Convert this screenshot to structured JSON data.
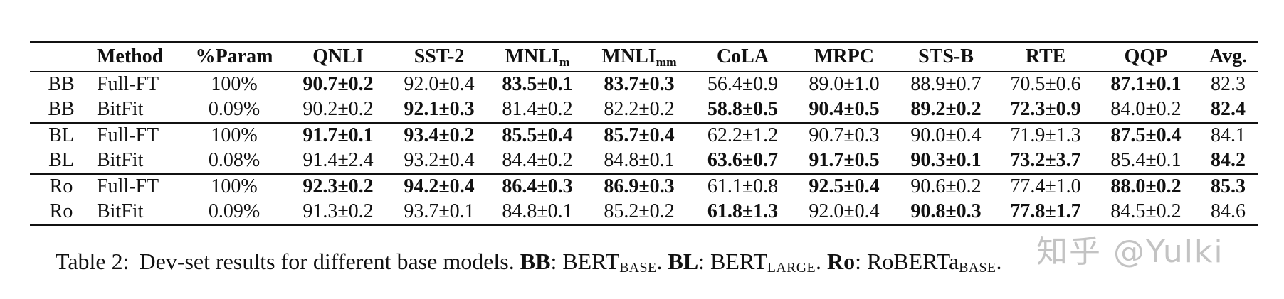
{
  "table": {
    "columns": [
      {
        "label": ""
      },
      {
        "label": "Method"
      },
      {
        "label": "%Param"
      },
      {
        "label": "QNLI"
      },
      {
        "label": "SST-2"
      },
      {
        "label": "MNLI",
        "sub": "m"
      },
      {
        "label": "MNLI",
        "sub": "mm"
      },
      {
        "label": "CoLA"
      },
      {
        "label": "MRPC"
      },
      {
        "label": "STS-B"
      },
      {
        "label": "RTE"
      },
      {
        "label": "QQP"
      },
      {
        "label": "Avg."
      }
    ],
    "rows": [
      {
        "model": "BB",
        "method": "Full-FT",
        "param": "100%",
        "group_start": false,
        "scores": [
          {
            "v": "90.7±0.2",
            "b": true
          },
          {
            "v": "92.0±0.4",
            "b": false
          },
          {
            "v": "83.5±0.1",
            "b": true
          },
          {
            "v": "83.7±0.3",
            "b": true
          },
          {
            "v": "56.4±0.9",
            "b": false
          },
          {
            "v": "89.0±1.0",
            "b": false
          },
          {
            "v": "88.9±0.7",
            "b": false
          },
          {
            "v": "70.5±0.6",
            "b": false
          },
          {
            "v": "87.1±0.1",
            "b": true
          },
          {
            "v": "82.3",
            "b": false
          }
        ]
      },
      {
        "model": "BB",
        "method": "BitFit",
        "param": "0.09%",
        "group_start": false,
        "scores": [
          {
            "v": "90.2±0.2",
            "b": false
          },
          {
            "v": "92.1±0.3",
            "b": true
          },
          {
            "v": "81.4±0.2",
            "b": false
          },
          {
            "v": "82.2±0.2",
            "b": false
          },
          {
            "v": "58.8±0.5",
            "b": true
          },
          {
            "v": "90.4±0.5",
            "b": true
          },
          {
            "v": "89.2±0.2",
            "b": true
          },
          {
            "v": "72.3±0.9",
            "b": true
          },
          {
            "v": "84.0±0.2",
            "b": false
          },
          {
            "v": "82.4",
            "b": true
          }
        ]
      },
      {
        "model": "BL",
        "method": "Full-FT",
        "param": "100%",
        "group_start": true,
        "scores": [
          {
            "v": "91.7±0.1",
            "b": true
          },
          {
            "v": "93.4±0.2",
            "b": true
          },
          {
            "v": "85.5±0.4",
            "b": true
          },
          {
            "v": "85.7±0.4",
            "b": true
          },
          {
            "v": "62.2±1.2",
            "b": false
          },
          {
            "v": "90.7±0.3",
            "b": false
          },
          {
            "v": "90.0±0.4",
            "b": false
          },
          {
            "v": "71.9±1.3",
            "b": false
          },
          {
            "v": "87.5±0.4",
            "b": true
          },
          {
            "v": "84.1",
            "b": false
          }
        ]
      },
      {
        "model": "BL",
        "method": "BitFit",
        "param": "0.08%",
        "group_start": false,
        "scores": [
          {
            "v": "91.4±2.4",
            "b": false
          },
          {
            "v": "93.2±0.4",
            "b": false
          },
          {
            "v": "84.4±0.2",
            "b": false
          },
          {
            "v": "84.8±0.1",
            "b": false
          },
          {
            "v": "63.6±0.7",
            "b": true
          },
          {
            "v": "91.7±0.5",
            "b": true
          },
          {
            "v": "90.3±0.1",
            "b": true
          },
          {
            "v": "73.2±3.7",
            "b": true
          },
          {
            "v": "85.4±0.1",
            "b": false
          },
          {
            "v": "84.2",
            "b": true
          }
        ]
      },
      {
        "model": "Ro",
        "method": "Full-FT",
        "param": "100%",
        "group_start": true,
        "scores": [
          {
            "v": "92.3±0.2",
            "b": true
          },
          {
            "v": "94.2±0.4",
            "b": true
          },
          {
            "v": "86.4±0.3",
            "b": true
          },
          {
            "v": "86.9±0.3",
            "b": true
          },
          {
            "v": "61.1±0.8",
            "b": false
          },
          {
            "v": "92.5±0.4",
            "b": true
          },
          {
            "v": "90.6±0.2",
            "b": false
          },
          {
            "v": "77.4±1.0",
            "b": false
          },
          {
            "v": "88.0±0.2",
            "b": true
          },
          {
            "v": "85.3",
            "b": true
          }
        ]
      },
      {
        "model": "Ro",
        "method": "BitFit",
        "param": "0.09%",
        "group_start": false,
        "scores": [
          {
            "v": "91.3±0.2",
            "b": false
          },
          {
            "v": "93.7±0.1",
            "b": false
          },
          {
            "v": "84.8±0.1",
            "b": false
          },
          {
            "v": "85.2±0.2",
            "b": false
          },
          {
            "v": "61.8±1.3",
            "b": true
          },
          {
            "v": "92.0±0.4",
            "b": false
          },
          {
            "v": "90.8±0.3",
            "b": true
          },
          {
            "v": "77.8±1.7",
            "b": true
          },
          {
            "v": "84.5±0.2",
            "b": false
          },
          {
            "v": "84.6",
            "b": false
          }
        ]
      }
    ]
  },
  "caption": {
    "label": "Table 2:",
    "text": "Dev-set results for different base models.",
    "colon": ":",
    "period": ".",
    "abbrevs": [
      {
        "abbr": "BB",
        "name": "BERT",
        "sub": "BASE"
      },
      {
        "abbr": "BL",
        "name": "BERT",
        "sub": "LARGE"
      },
      {
        "abbr": "Ro",
        "name": "RoBERTa",
        "sub": "BASE"
      }
    ]
  },
  "watermark": {
    "text": "知乎 @Yulki",
    "color": "#c3c3c3"
  }
}
